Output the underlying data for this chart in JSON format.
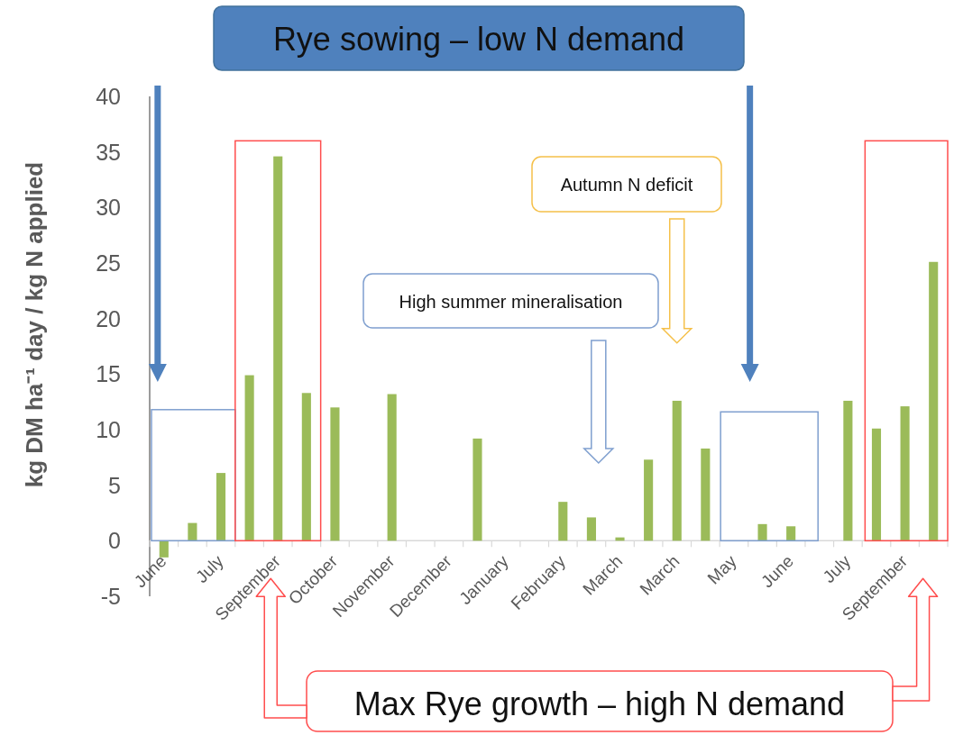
{
  "chart_data": {
    "type": "bar",
    "ylabel": "kg DM ha⁻¹ day / kg N applied",
    "categories": [
      "June",
      null,
      "July",
      null,
      "September",
      null,
      "October",
      null,
      "November",
      null,
      "December",
      null,
      "January",
      null,
      "February",
      null,
      "March",
      null,
      "March",
      null,
      "May",
      null,
      "June",
      null,
      "July",
      null,
      "September",
      null
    ],
    "values": [
      -1.5,
      1.6,
      6.1,
      14.9,
      34.6,
      13.3,
      12.0,
      null,
      13.2,
      null,
      null,
      9.2,
      null,
      null,
      3.5,
      2.1,
      0.3,
      7.3,
      12.6,
      8.3,
      null,
      1.5,
      1.3,
      null,
      12.6,
      10.1,
      12.1,
      25.1
    ],
    "color": "#9bbb59",
    "ylim": [
      -5,
      40
    ],
    "yticks": [
      -5,
      0,
      5,
      10,
      15,
      20,
      25,
      30,
      35,
      40
    ],
    "annotations": [
      "Rye sowing – low N demand",
      "High summer mineralisation",
      "Autumn N deficit",
      "Max Rye growth – high N demand"
    ]
  }
}
